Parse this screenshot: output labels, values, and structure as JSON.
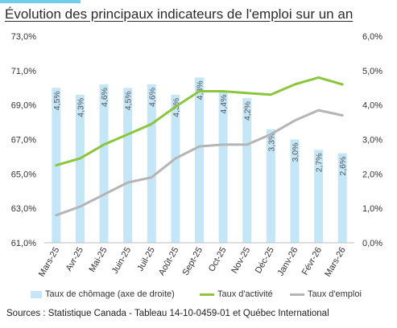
{
  "title": "Évolution des principaux indicateurs de l'emploi sur un an",
  "source": "Sources : Statistique Canada - Tableau 14-10-0459-01 et Québec International",
  "chart_data": {
    "type": "bar",
    "categories": [
      "Mars-25",
      "Avr-25",
      "Mai-25",
      "Juin-25",
      "Juil-25",
      "Août-25",
      "Sept-25",
      "Oct-25",
      "Nov-25",
      "Déc-25",
      "Janv-26",
      "Févr-26",
      "Mars-26"
    ],
    "y_left": {
      "min": 61.0,
      "max": 73.0,
      "ticks": [
        "61,0%",
        "63,0%",
        "65,0%",
        "67,0%",
        "69,0%",
        "71,0%",
        "73,0%"
      ]
    },
    "y_right": {
      "min": 0.0,
      "max": 6.0,
      "ticks": [
        "0,0%",
        "1,0%",
        "2,0%",
        "3,0%",
        "4,0%",
        "5,0%",
        "6,0%"
      ]
    },
    "grid": false,
    "legend_position": "bottom",
    "series": [
      {
        "name": "Taux de chômage (axe de droite)",
        "type": "bar",
        "axis": "right",
        "color": "#c5e6f7",
        "values": [
          4.5,
          4.3,
          4.6,
          4.5,
          4.6,
          4.3,
          4.8,
          4.4,
          4.2,
          3.3,
          3.0,
          2.7,
          2.6
        ],
        "labels": [
          "4,5%",
          "4,3%",
          "4,6%",
          "4,5%",
          "4,6%",
          "4,3%",
          "4,8%",
          "4,4%",
          "4,2%",
          "3,3%",
          "3,0%",
          "2,7%",
          "2,6%"
        ]
      },
      {
        "name": "Taux d'activité",
        "type": "line",
        "axis": "left",
        "color": "#8cc63f",
        "values": [
          65.5,
          65.9,
          66.7,
          67.3,
          67.9,
          68.9,
          69.8,
          69.8,
          69.7,
          69.6,
          70.2,
          70.6,
          70.2
        ]
      },
      {
        "name": "Taux d'emploi",
        "type": "line",
        "axis": "left",
        "color": "#b5b5b5",
        "values": [
          62.6,
          63.1,
          63.8,
          64.5,
          64.8,
          65.9,
          66.6,
          66.7,
          66.7,
          67.3,
          68.1,
          68.7,
          68.4
        ]
      }
    ]
  }
}
